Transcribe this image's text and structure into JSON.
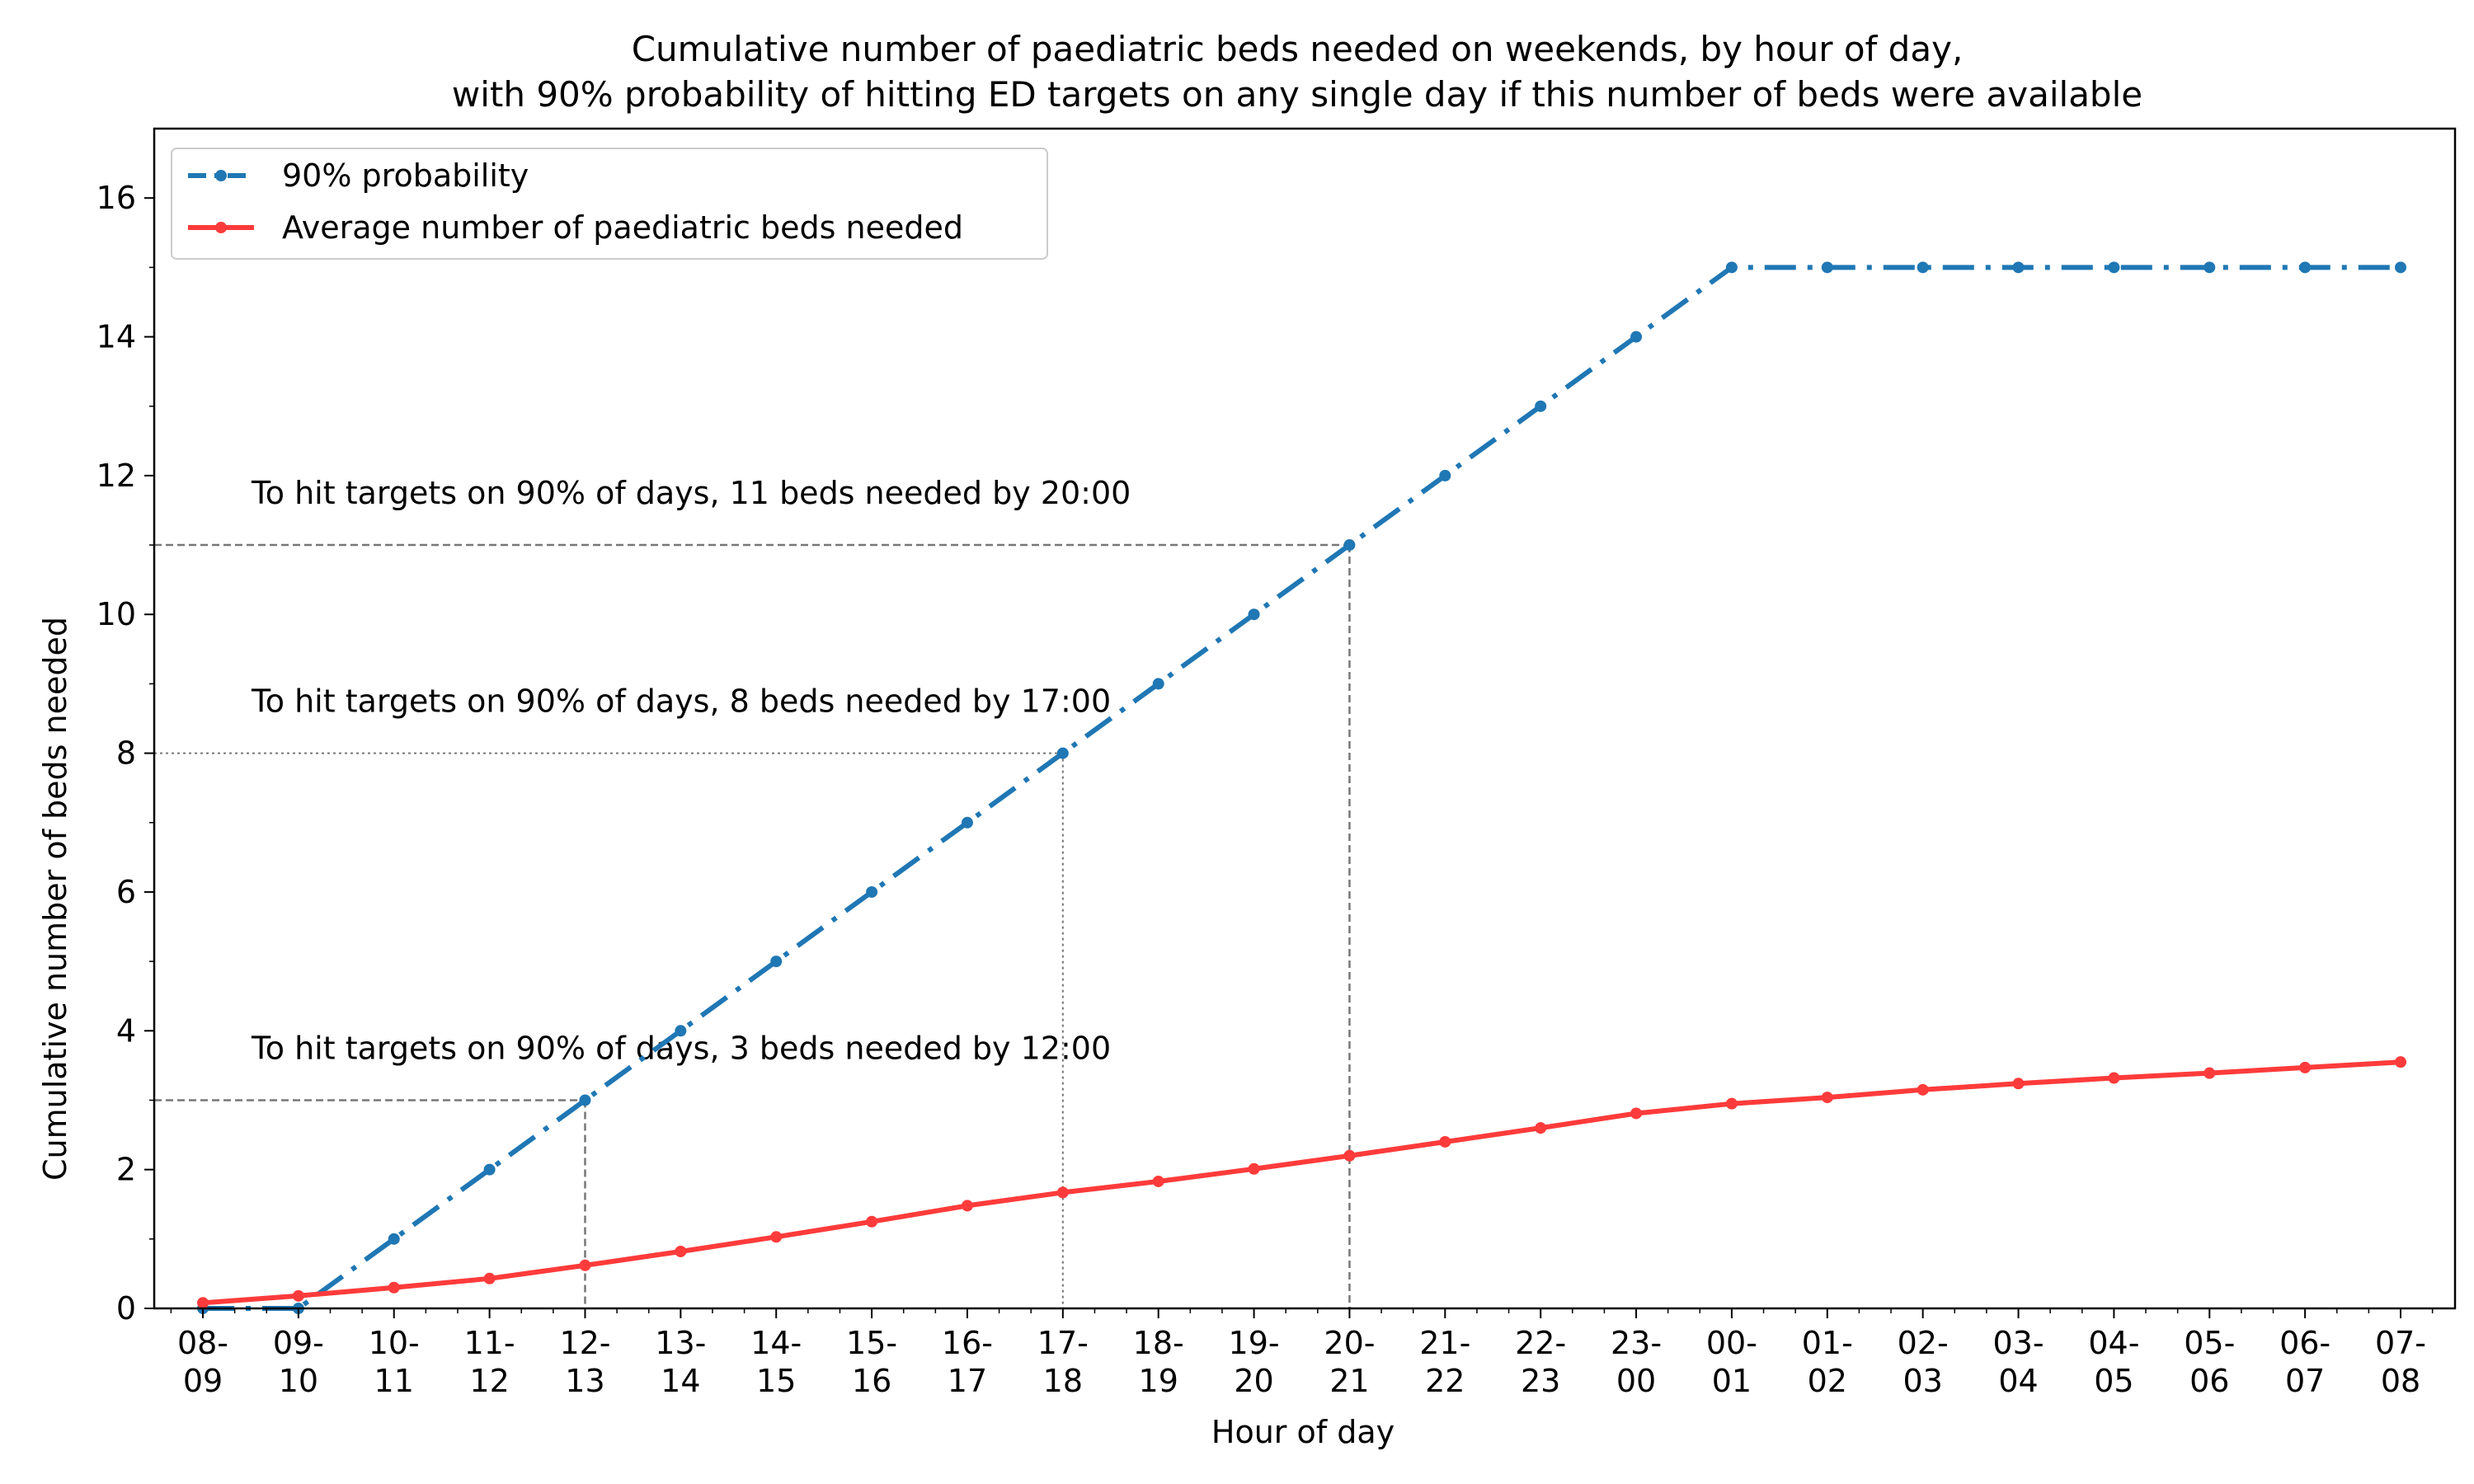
{
  "chart_data": {
    "type": "line",
    "title": [
      "Cumulative number of paediatric beds needed on weekends, by hour of day,",
      "with 90% probability of hitting ED targets on any single day if this number of beds were available"
    ],
    "xlabel": "Hour of day",
    "ylabel": "Cumulative number of beds needed",
    "ylim": [
      0,
      17
    ],
    "yticks": [
      0,
      2,
      4,
      6,
      8,
      10,
      12,
      14,
      16
    ],
    "grid": false,
    "legend_position": "top-left",
    "categories": [
      [
        "08-",
        "09"
      ],
      [
        "09-",
        "10"
      ],
      [
        "10-",
        "11"
      ],
      [
        "11-",
        "12"
      ],
      [
        "12-",
        "13"
      ],
      [
        "13-",
        "14"
      ],
      [
        "14-",
        "15"
      ],
      [
        "15-",
        "16"
      ],
      [
        "16-",
        "17"
      ],
      [
        "17-",
        "18"
      ],
      [
        "18-",
        "19"
      ],
      [
        "19-",
        "20"
      ],
      [
        "20-",
        "21"
      ],
      [
        "21-",
        "22"
      ],
      [
        "22-",
        "23"
      ],
      [
        "23-",
        "00"
      ],
      [
        "00-",
        "01"
      ],
      [
        "01-",
        "02"
      ],
      [
        "02-",
        "03"
      ],
      [
        "03-",
        "04"
      ],
      [
        "04-",
        "05"
      ],
      [
        "05-",
        "06"
      ],
      [
        "06-",
        "07"
      ],
      [
        "07-",
        "08"
      ]
    ],
    "series": [
      {
        "name": "90% probability",
        "color": "#1f77b4",
        "style": "dashdot",
        "values": [
          0,
          0,
          1,
          2,
          3,
          4,
          5,
          6,
          7,
          8,
          9,
          10,
          11,
          12,
          13,
          14,
          15,
          15,
          15,
          15,
          15,
          15,
          15,
          15
        ]
      },
      {
        "name": "Average number of paediatric beds needed",
        "color": "#ff3b3b",
        "style": "solid",
        "values": [
          0.08,
          0.18,
          0.3,
          0.43,
          0.62,
          0.82,
          1.03,
          1.25,
          1.48,
          1.67,
          1.83,
          2.01,
          2.2,
          2.4,
          2.6,
          2.81,
          2.95,
          3.04,
          3.15,
          3.24,
          3.32,
          3.39,
          3.47,
          3.55
        ]
      }
    ],
    "annotations": [
      {
        "text": "To hit targets on 90% of days, 11 beds needed by 20:00",
        "x_index": 12,
        "y": 11,
        "line_style": "dashed"
      },
      {
        "text": "To hit targets on 90% of days, 8 beds needed by 17:00",
        "x_index": 9,
        "y": 8,
        "line_style": "dotted"
      },
      {
        "text": "To hit targets on 90% of days, 3 beds needed by 12:00",
        "x_index": 4,
        "y": 3,
        "line_style": "dashed"
      }
    ]
  }
}
